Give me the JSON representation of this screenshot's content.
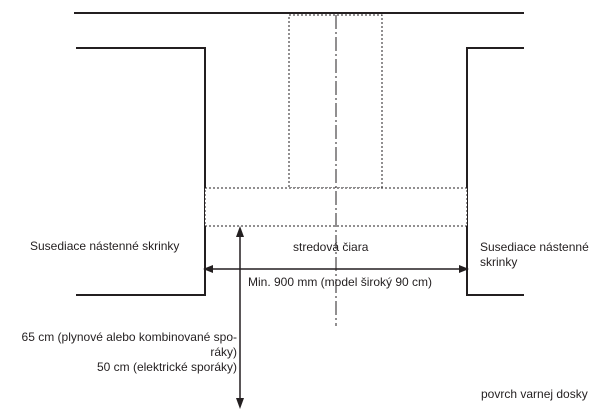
{
  "labels": {
    "left_cabinet": "Susediace nástenné skrinky",
    "right_cabinet_line1": "Susediace nástenné",
    "right_cabinet_line2": "skrinky",
    "center_line": "stredová čiara",
    "min_width": "Min. 900 mm (model široký 90 cm)",
    "height_gas_line1": "65 cm (plynové alebo kombinované spo-",
    "height_gas_line2": "ráky)",
    "height_electric": "50 cm (elektrické sporáky)",
    "hob_surface": "povrch varnej dosky"
  },
  "colors": {
    "line": "#231f20",
    "background": "#ffffff"
  }
}
